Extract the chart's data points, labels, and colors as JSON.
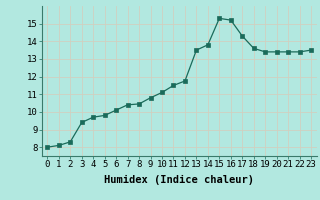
{
  "x": [
    0,
    1,
    2,
    3,
    4,
    5,
    6,
    7,
    8,
    9,
    10,
    11,
    12,
    13,
    14,
    15,
    16,
    17,
    18,
    19,
    20,
    21,
    22,
    23
  ],
  "y": [
    8.0,
    8.1,
    8.3,
    9.4,
    9.7,
    9.8,
    10.1,
    10.4,
    10.45,
    10.8,
    11.1,
    11.5,
    11.75,
    13.5,
    13.8,
    15.3,
    15.2,
    14.3,
    13.6,
    13.4,
    13.4,
    13.4,
    13.4,
    13.5
  ],
  "line_color": "#1a6b5a",
  "marker": "s",
  "marker_size": 2.5,
  "bg_color": "#b2e8e0",
  "grid_color": "#d0d0c0",
  "xlabel": "Humidex (Indice chaleur)",
  "xlim": [
    -0.5,
    23.5
  ],
  "ylim": [
    7.5,
    16.0
  ],
  "yticks": [
    8,
    9,
    10,
    11,
    12,
    13,
    14,
    15
  ],
  "xticks": [
    0,
    1,
    2,
    3,
    4,
    5,
    6,
    7,
    8,
    9,
    10,
    11,
    12,
    13,
    14,
    15,
    16,
    17,
    18,
    19,
    20,
    21,
    22,
    23
  ],
  "xlabel_fontsize": 7.5,
  "tick_fontsize": 6.5
}
